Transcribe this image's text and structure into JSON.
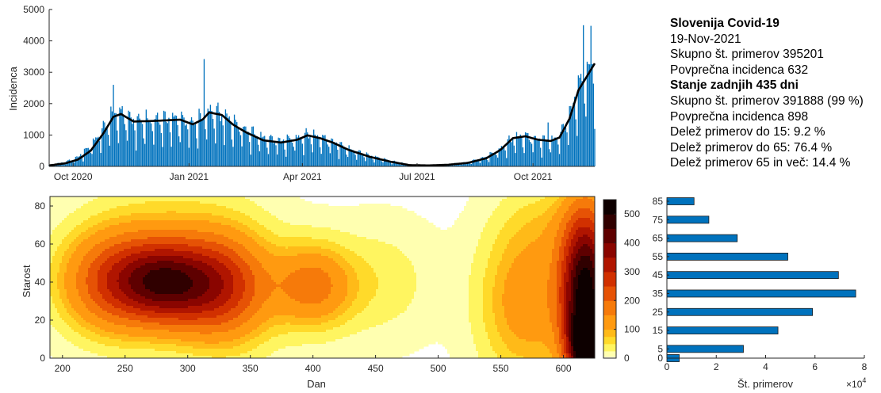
{
  "info": {
    "title": "Slovenija Covid-19",
    "date": "19-Nov-2021",
    "total_cases": "Skupno št. primerov 395201",
    "avg_incidence": "Povprečna incidenca 632",
    "period_heading": "Stanje zadnjih 435 dni",
    "period_total": "Skupno št. primerov 391888 (99 %)",
    "period_avg": "Povprečna incidenca 898",
    "share_15": "Delež primerov do 15: 9.2 %",
    "share_65": "Delež primerov do 65: 76.4 %",
    "share_65plus": "Delež primerov 65 in več: 14.4 %"
  },
  "chart_data": [
    {
      "type": "bar",
      "ylabel": "Incidenca",
      "ylim": [
        0,
        5000
      ],
      "yticks": [
        "0",
        "1000",
        "2000",
        "3000",
        "4000",
        "5000"
      ],
      "xticks": [
        "Oct 2020",
        "Jan 2021",
        "Apr 2021",
        "Jul 2021",
        "Oct 2021"
      ],
      "xrange": [
        "2020-09-12",
        "2021-11-19"
      ],
      "bar_color": "#0072bd",
      "line_color": "#000000",
      "series": [
        {
          "kind": "daily_bars",
          "points": [
            [
              "2020-09-12",
              40
            ],
            [
              "2020-09-25",
              140
            ],
            [
              "2020-10-05",
              300
            ],
            [
              "2020-10-15",
              650
            ],
            [
              "2020-10-25",
              1200
            ],
            [
              "2020-11-02",
              1650
            ],
            [
              "2020-11-08",
              1680
            ],
            [
              "2020-11-20",
              1430
            ],
            [
              "2020-12-05",
              1460
            ],
            [
              "2020-12-25",
              1500
            ],
            [
              "2021-01-05",
              1330
            ],
            [
              "2021-01-12",
              1550
            ],
            [
              "2021-01-17",
              1720
            ],
            [
              "2021-01-28",
              1650
            ],
            [
              "2021-02-05",
              1380
            ],
            [
              "2021-02-15",
              1150
            ],
            [
              "2021-03-01",
              900
            ],
            [
              "2021-03-15",
              800
            ],
            [
              "2021-03-28",
              900
            ],
            [
              "2021-04-05",
              1000
            ],
            [
              "2021-04-15",
              920
            ],
            [
              "2021-04-25",
              780
            ],
            [
              "2021-05-08",
              550
            ],
            [
              "2021-05-25",
              330
            ],
            [
              "2021-06-10",
              180
            ],
            [
              "2021-06-25",
              50
            ],
            [
              "2021-07-10",
              35
            ],
            [
              "2021-07-25",
              60
            ],
            [
              "2021-08-10",
              130
            ],
            [
              "2021-08-25",
              300
            ],
            [
              "2021-09-05",
              550
            ],
            [
              "2021-09-15",
              900
            ],
            [
              "2021-09-25",
              950
            ],
            [
              "2021-10-05",
              850
            ],
            [
              "2021-10-15",
              810
            ],
            [
              "2021-10-22",
              950
            ],
            [
              "2021-10-30",
              1600
            ],
            [
              "2021-11-06",
              2500
            ],
            [
              "2021-11-14",
              3000
            ],
            [
              "2021-11-19",
              3400
            ]
          ],
          "peaks": [
            [
              "2020-11-02",
              2600
            ],
            [
              "2021-01-13",
              3420
            ],
            [
              "2021-10-13",
              1400
            ],
            [
              "2021-11-10",
              4500
            ],
            [
              "2021-11-16",
              4480
            ]
          ]
        },
        {
          "kind": "7_day_average",
          "points": [
            [
              "2020-09-12",
              30
            ],
            [
              "2020-09-25",
              100
            ],
            [
              "2020-10-05",
              220
            ],
            [
              "2020-10-15",
              500
            ],
            [
              "2020-10-25",
              1050
            ],
            [
              "2020-11-02",
              1580
            ],
            [
              "2020-11-08",
              1670
            ],
            [
              "2020-11-18",
              1430
            ],
            [
              "2020-12-05",
              1450
            ],
            [
              "2020-12-25",
              1490
            ],
            [
              "2021-01-04",
              1340
            ],
            [
              "2021-01-12",
              1500
            ],
            [
              "2021-01-17",
              1720
            ],
            [
              "2021-01-27",
              1640
            ],
            [
              "2021-02-05",
              1330
            ],
            [
              "2021-02-15",
              1090
            ],
            [
              "2021-03-01",
              830
            ],
            [
              "2021-03-15",
              760
            ],
            [
              "2021-03-28",
              850
            ],
            [
              "2021-04-05",
              990
            ],
            [
              "2021-04-15",
              900
            ],
            [
              "2021-04-25",
              760
            ],
            [
              "2021-05-08",
              520
            ],
            [
              "2021-05-25",
              300
            ],
            [
              "2021-06-10",
              150
            ],
            [
              "2021-06-25",
              40
            ],
            [
              "2021-07-10",
              30
            ],
            [
              "2021-07-25",
              50
            ],
            [
              "2021-08-10",
              110
            ],
            [
              "2021-08-25",
              260
            ],
            [
              "2021-09-05",
              520
            ],
            [
              "2021-09-15",
              900
            ],
            [
              "2021-09-25",
              960
            ],
            [
              "2021-10-05",
              850
            ],
            [
              "2021-10-15",
              810
            ],
            [
              "2021-10-22",
              920
            ],
            [
              "2021-10-30",
              1520
            ],
            [
              "2021-11-06",
              2420
            ],
            [
              "2021-11-14",
              2950
            ],
            [
              "2021-11-19",
              3280
            ]
          ]
        }
      ]
    },
    {
      "type": "heatmap",
      "xlabel": "Dan",
      "ylabel": "Starost",
      "xlim": [
        190,
        625
      ],
      "ylim": [
        0,
        85
      ],
      "xticks": [
        200,
        250,
        300,
        350,
        400,
        450,
        500,
        550,
        600
      ],
      "yticks": [
        0,
        20,
        40,
        60,
        80
      ],
      "levels": [
        5,
        25,
        50,
        75,
        100,
        150,
        200,
        250,
        300,
        350,
        400,
        450,
        500
      ],
      "colormap": [
        "#fffef4",
        "#ffffb0",
        "#fff560",
        "#ffda2a",
        "#ffba18",
        "#ff9a10",
        "#f67a0a",
        "#e65205",
        "#d13000",
        "#b01500",
        "#8a0500",
        "#5e0000",
        "#300000",
        "#0d0000"
      ],
      "colorbar": {
        "min": 0,
        "max": 550,
        "ticks": [
          0,
          100,
          200,
          300,
          400,
          500
        ]
      },
      "hotspots": [
        {
          "x": 245,
          "y": 40,
          "value": 270,
          "spread_x": 30,
          "spread_y": 18
        },
        {
          "x": 314,
          "y": 38,
          "value": 265,
          "spread_x": 28,
          "spread_y": 18
        },
        {
          "x": 280,
          "y": 40,
          "value": 200,
          "spread_x": 22,
          "spread_y": 14
        },
        {
          "x": 285,
          "y": 65,
          "value": 45,
          "spread_x": 45,
          "spread_y": 22
        },
        {
          "x": 400,
          "y": 38,
          "value": 170,
          "spread_x": 22,
          "spread_y": 15
        },
        {
          "x": 340,
          "y": 36,
          "value": 90,
          "spread_x": 25,
          "spread_y": 22
        },
        {
          "x": 455,
          "y": 40,
          "value": 40,
          "spread_x": 28,
          "spread_y": 20
        },
        {
          "x": 618,
          "y": 35,
          "value": 520,
          "spread_x": 14,
          "spread_y": 30
        },
        {
          "x": 620,
          "y": 5,
          "value": 420,
          "spread_x": 10,
          "spread_y": 12
        },
        {
          "x": 570,
          "y": 30,
          "value": 130,
          "spread_x": 25,
          "spread_y": 28
        },
        {
          "x": 590,
          "y": 70,
          "value": 40,
          "spread_x": 25,
          "spread_y": 15
        }
      ]
    },
    {
      "type": "bar",
      "orientation": "horizontal",
      "xlabel": "Št. primerov",
      "xlim": [
        0,
        80000
      ],
      "xticks": [
        "0",
        "2",
        "4",
        "6",
        "8"
      ],
      "x_exponent": "10",
      "x_exponent_power": "4",
      "yticks": [
        "0",
        "5",
        "15",
        "25",
        "35",
        "45",
        "55",
        "65",
        "75",
        "85"
      ],
      "bar_color": "#0072bd",
      "categories": [
        0,
        5,
        15,
        25,
        35,
        45,
        55,
        65,
        75,
        85
      ],
      "values": [
        5000,
        31000,
        45000,
        59000,
        76500,
        69500,
        49000,
        28500,
        17000,
        11000
      ]
    }
  ]
}
